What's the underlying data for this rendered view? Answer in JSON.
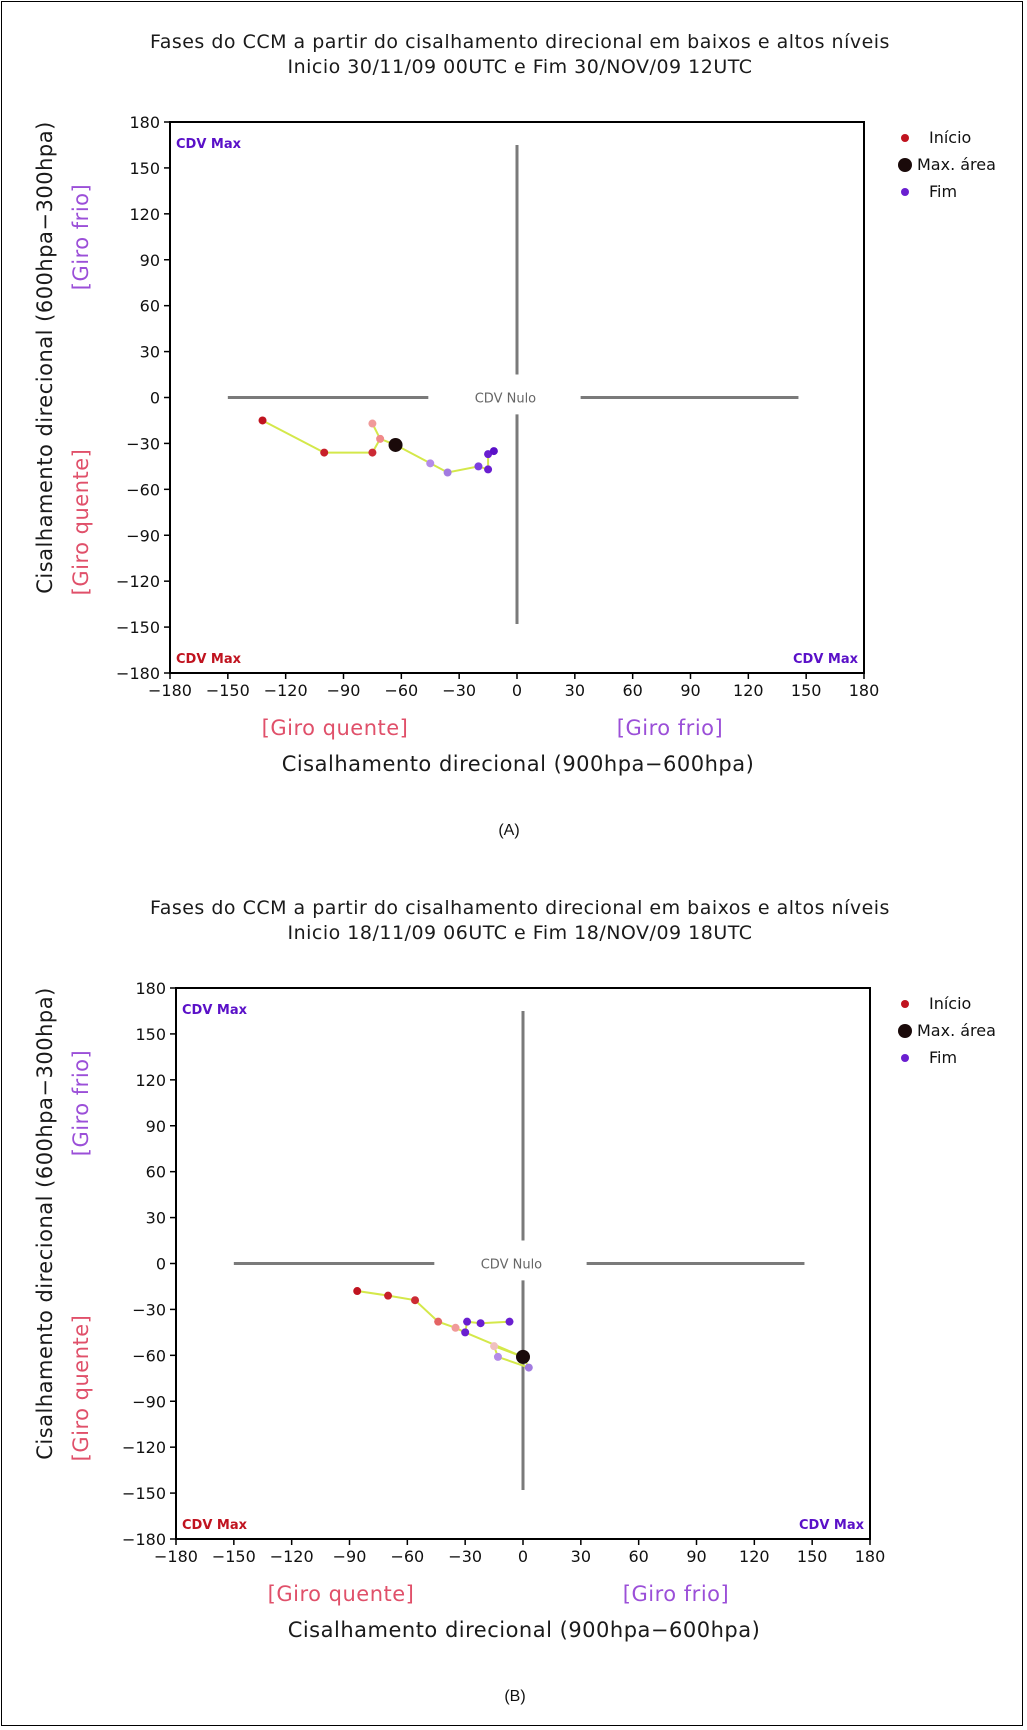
{
  "chart_data": [
    {
      "type": "scatter",
      "title": "Fases do CCM a partir do cisalhamento direcional em baixos e altos níveis",
      "subtitle": "Inicio 30/11/09 00UTC e Fim 30/NOV/09 12UTC",
      "xlabel": "Cisalhamento direcional (900hpa−600hpa)",
      "ylabel": "Cisalhamento direcional (600hpa−300hpa)",
      "xlim": [
        -180,
        180
      ],
      "ylim": [
        -180,
        180
      ],
      "xticks": [
        "−180",
        "−150",
        "−120",
        "−90",
        "−60",
        "−30",
        "0",
        "30",
        "60",
        "90",
        "120",
        "150",
        "180"
      ],
      "yticks": [
        "180",
        "150",
        "120",
        "90",
        "60",
        "30",
        "0",
        "−30",
        "−60",
        "−90",
        "−120",
        "−150",
        "−180"
      ],
      "x_giro_left": "[Giro quente]",
      "x_giro_right": "[Giro frio]",
      "y_giro_top": "[Giro frio]",
      "y_giro_bottom": "[Giro quente]",
      "cdv_top_left": "CDV Max",
      "cdv_bottom_left": "CDV Max",
      "cdv_bottom_right": "CDV Max",
      "center_label": "CDV Nulo",
      "caption": "(A)",
      "legend": [
        "Início",
        "Max. área",
        "Fim"
      ],
      "legend_colors": [
        "#c0131f",
        "#1a0a0a",
        "#6a1fd0"
      ],
      "line_color": "#d4e84a",
      "points": [
        {
          "x": -132,
          "y": -15,
          "color": "#c0131f"
        },
        {
          "x": -100,
          "y": -36,
          "color": "#c8202a"
        },
        {
          "x": -75,
          "y": -36,
          "color": "#cc2a34"
        },
        {
          "x": -75,
          "y": -17,
          "color": "#f09a9a"
        },
        {
          "x": -71,
          "y": -27,
          "color": "#f08a8a"
        },
        {
          "x": -63,
          "y": -31,
          "color": "#1a0a0a",
          "big": true
        },
        {
          "x": -45,
          "y": -43,
          "color": "#b48be8"
        },
        {
          "x": -36,
          "y": -49,
          "color": "#a27be0"
        },
        {
          "x": -20,
          "y": -45,
          "color": "#7c3fe0"
        },
        {
          "x": -15,
          "y": -47,
          "color": "#6a1fd0"
        },
        {
          "x": -15,
          "y": -37,
          "color": "#6a1fd0"
        },
        {
          "x": -12,
          "y": -35,
          "color": "#5a10c8"
        }
      ],
      "path": [
        [
          -132,
          -15
        ],
        [
          -100,
          -36
        ],
        [
          -75,
          -36
        ],
        [
          -71,
          -27
        ],
        [
          -75,
          -17
        ],
        [
          -71,
          -27
        ],
        [
          -63,
          -31
        ],
        [
          -45,
          -43
        ],
        [
          -36,
          -49
        ],
        [
          -20,
          -45
        ],
        [
          -15,
          -47
        ],
        [
          -15,
          -37
        ],
        [
          -12,
          -35
        ]
      ]
    },
    {
      "type": "scatter",
      "title": "Fases do CCM a partir do cisalhamento direcional em baixos e altos níveis",
      "subtitle": "Inicio 18/11/09 06UTC e Fim 18/NOV/09 18UTC",
      "xlabel": "Cisalhamento direcional (900hpa−600hpa)",
      "ylabel": "Cisalhamento direcional (600hpa−300hpa)",
      "xlim": [
        -180,
        180
      ],
      "ylim": [
        -180,
        180
      ],
      "xticks": [
        "−180",
        "−150",
        "−120",
        "−90",
        "−60",
        "−30",
        "0",
        "30",
        "60",
        "90",
        "120",
        "150",
        "180"
      ],
      "yticks": [
        "180",
        "150",
        "120",
        "90",
        "60",
        "30",
        "0",
        "−30",
        "−60",
        "−90",
        "−120",
        "−150",
        "−180"
      ],
      "x_giro_left": "[Giro quente]",
      "x_giro_right": "[Giro frio]",
      "y_giro_top": "[Giro frio]",
      "y_giro_bottom": "[Giro quente]",
      "cdv_top_left": "CDV Max",
      "cdv_bottom_left": "CDV Max",
      "cdv_bottom_right": "CDV Max",
      "center_label": "CDV Nulo",
      "caption": "(B)",
      "legend": [
        "Início",
        "Max. área",
        "Fim"
      ],
      "legend_colors": [
        "#c0131f",
        "#1a0a0a",
        "#6a1fd0"
      ],
      "line_color": "#d4e84a",
      "points": [
        {
          "x": -86,
          "y": -18,
          "color": "#c0131f"
        },
        {
          "x": -70,
          "y": -21,
          "color": "#c8202a"
        },
        {
          "x": -56,
          "y": -24,
          "color": "#cc2a34"
        },
        {
          "x": -44,
          "y": -38,
          "color": "#e46464"
        },
        {
          "x": -35,
          "y": -42,
          "color": "#f09a9a"
        },
        {
          "x": -30,
          "y": -45,
          "color": "#6a1fd0"
        },
        {
          "x": -29,
          "y": -38,
          "color": "#6a1fd0"
        },
        {
          "x": -22,
          "y": -39,
          "color": "#6a1fd0"
        },
        {
          "x": -7,
          "y": -38,
          "color": "#6a1fd0"
        },
        {
          "x": -15,
          "y": -54,
          "color": "#f0c0c0"
        },
        {
          "x": -13,
          "y": -61,
          "color": "#b48be8"
        },
        {
          "x": 0,
          "y": -61,
          "color": "#1a0a0a",
          "big": true
        },
        {
          "x": 3,
          "y": -68,
          "color": "#a27be0"
        }
      ],
      "path": [
        [
          -86,
          -18
        ],
        [
          -70,
          -21
        ],
        [
          -56,
          -24
        ],
        [
          -44,
          -38
        ],
        [
          -35,
          -42
        ],
        [
          -30,
          -45
        ],
        [
          0,
          -61
        ],
        [
          -15,
          -54
        ],
        [
          -13,
          -61
        ],
        [
          3,
          -68
        ],
        [
          0,
          -61
        ],
        [
          -30,
          -45
        ],
        [
          -29,
          -38
        ],
        [
          -22,
          -39
        ],
        [
          -7,
          -38
        ]
      ]
    }
  ]
}
